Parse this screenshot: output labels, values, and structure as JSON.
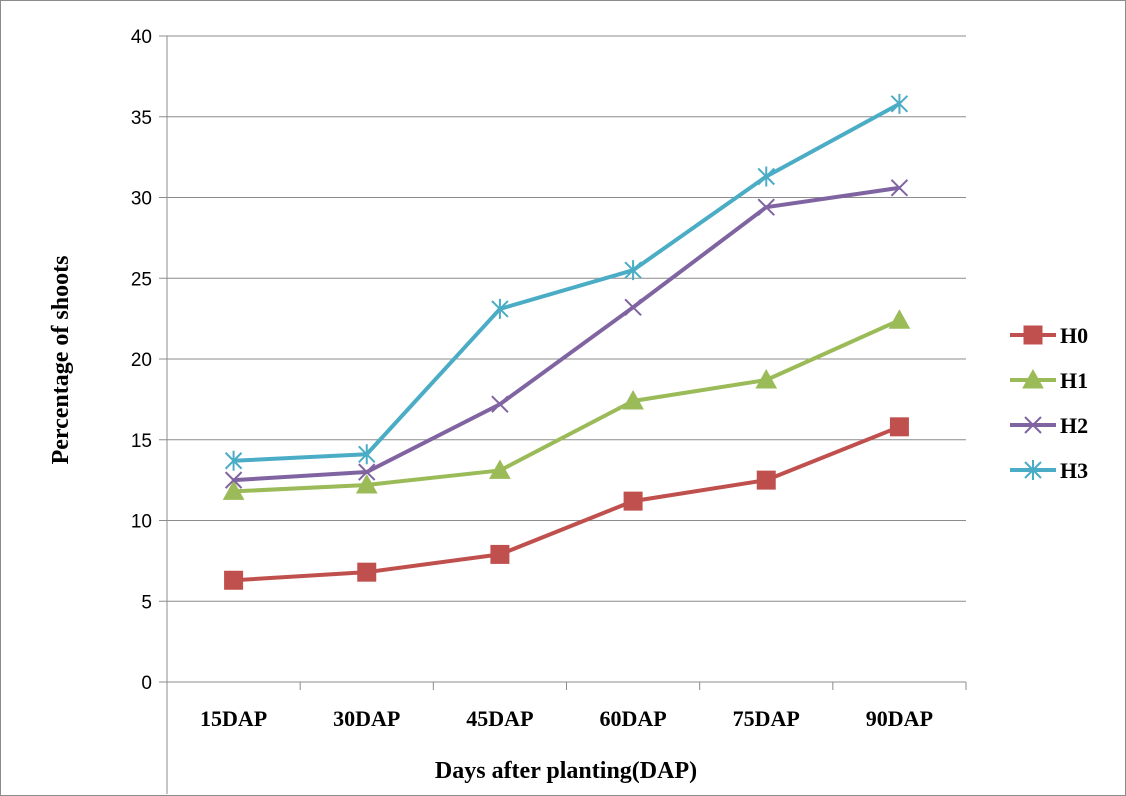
{
  "chart_data": {
    "type": "line",
    "title": "",
    "xlabel": "Days after planting(DAP)",
    "ylabel": "Percentage of shoots",
    "categories": [
      "15DAP",
      "30DAP",
      "45DAP",
      "60DAP",
      "75DAP",
      "90DAP"
    ],
    "ylim": [
      0,
      40
    ],
    "yticks": [
      0,
      5,
      10,
      15,
      20,
      25,
      30,
      35,
      40
    ],
    "grid": true,
    "legend_position": "right",
    "series": [
      {
        "name": "H0",
        "color": "#c0504d",
        "marker": "square",
        "values": [
          6.3,
          6.8,
          7.9,
          11.2,
          12.5,
          15.8
        ]
      },
      {
        "name": "H1",
        "color": "#9bbb59",
        "marker": "triangle",
        "values": [
          11.8,
          12.2,
          13.1,
          17.4,
          18.7,
          22.4
        ]
      },
      {
        "name": "H2",
        "color": "#8064a2",
        "marker": "x",
        "values": [
          12.5,
          13.0,
          17.2,
          23.2,
          29.4,
          30.6
        ]
      },
      {
        "name": "H3",
        "color": "#4bacc6",
        "marker": "star",
        "values": [
          13.7,
          14.1,
          23.1,
          25.5,
          31.3,
          35.8
        ]
      }
    ]
  }
}
